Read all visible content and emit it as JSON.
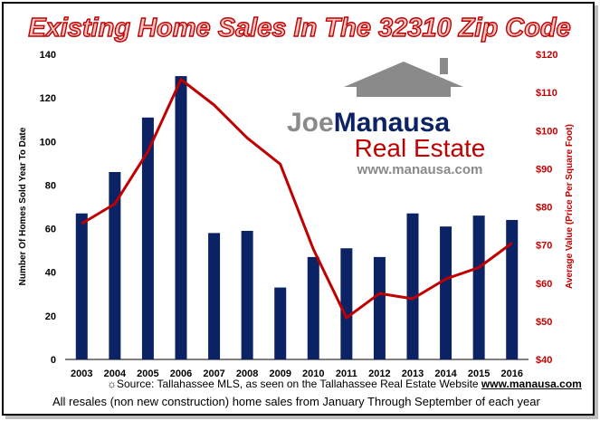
{
  "chart_data": {
    "type": "bar+line",
    "title": "Existing Home Sales In The 32310 Zip Code",
    "categories": [
      "2003",
      "2004",
      "2005",
      "2006",
      "2007",
      "2008",
      "2009",
      "2010",
      "2011",
      "2012",
      "2013",
      "2014",
      "2015",
      "2016"
    ],
    "series": [
      {
        "values": [
          67,
          86,
          111,
          130,
          58,
          59,
          33,
          47,
          51,
          47,
          67,
          61,
          66,
          64
        ],
        "type": "bar",
        "axis": "left",
        "color": "#0b2265"
      },
      {
        "values": [
          75.6,
          80.8,
          94.5,
          113.4,
          106.7,
          98.1,
          91.2,
          68.9,
          50.9,
          57.3,
          55.9,
          61.1,
          64.1,
          70.5
        ],
        "type": "line",
        "axis": "right",
        "color": "#c00000"
      }
    ],
    "ylabel": "Number Of Homes Sold Year To Date",
    "ylabel_right": "Average Value (Price Per Square Foot)",
    "ylim": [
      0,
      140
    ],
    "ylim_right": [
      40,
      120
    ],
    "yticks": [
      "0",
      "20",
      "40",
      "60",
      "80",
      "100",
      "120",
      "140"
    ],
    "yticks_right": [
      "$40",
      "$50",
      "$60",
      "$70",
      "$80",
      "$90",
      "$100",
      "$110",
      "$120"
    ],
    "grid": false,
    "legend": "none"
  },
  "logo": {
    "line1_a": "Joe",
    "line1_b": "Manausa",
    "line2": "Real Estate",
    "line3": "www.manausa.com"
  },
  "footer": {
    "source_text": "Source: Tallahassee MLS, as seen on the Tallahassee Real Estate Website",
    "source_link": "www.manausa.com",
    "note": "All resales (non new construction) home sales from January Through September of each year"
  },
  "colors": {
    "bar": "#0b2265",
    "line": "#c00000",
    "title_fill": "#f3c6c3",
    "title_stroke": "#c00000",
    "logo_gray": "#8a8a8a",
    "logo_blue": "#0b2265",
    "logo_red": "#c00000"
  }
}
